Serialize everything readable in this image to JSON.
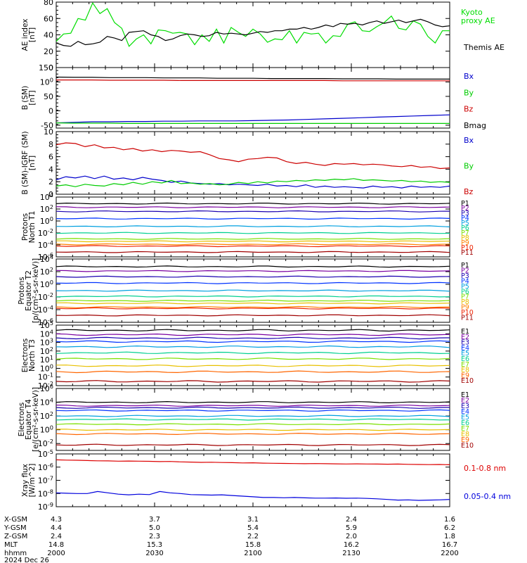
{
  "chart_data": [
    {
      "type": "line",
      "ylabel": "AE index [nT]",
      "ylim": [
        0,
        80
      ],
      "y_ticks": [
        "0",
        "20",
        "40",
        "60",
        "80"
      ],
      "series": [
        {
          "name": "Kyoto proxy AE",
          "color": "#00dd00",
          "values": [
            32,
            41,
            42,
            60,
            58,
            79,
            66,
            72,
            55,
            48,
            26,
            35,
            40,
            29,
            46,
            45,
            42,
            43,
            41,
            28,
            40,
            32,
            47,
            30,
            49,
            43,
            38,
            47,
            41,
            31,
            35,
            34,
            45,
            30,
            43,
            41,
            42,
            30,
            39,
            38,
            53,
            56,
            45,
            44,
            50,
            55,
            63,
            48,
            46,
            57,
            53,
            38,
            30,
            45,
            45
          ]
        },
        {
          "name": "Themis AE",
          "color": "#000000",
          "values": [
            30,
            27,
            26,
            32,
            28,
            29,
            31,
            38,
            36,
            33,
            43,
            44,
            45,
            40,
            38,
            33,
            35,
            39,
            41,
            40,
            38,
            39,
            43,
            41,
            42,
            41,
            40,
            42,
            44,
            43,
            45,
            45,
            47,
            47,
            49,
            47,
            49,
            52,
            50,
            54,
            53,
            54,
            52,
            55,
            57,
            54,
            56,
            58,
            55,
            57,
            59,
            56,
            52,
            50,
            51
          ]
        }
      ]
    },
    {
      "type": "line",
      "ylabel": "B (SM) [nT]",
      "ylim": [
        -60,
        150
      ],
      "y_ticks": [
        "150",
        "100",
        "50",
        "0",
        "-50"
      ],
      "series": [
        {
          "name": "Bx",
          "color": "#0000cc",
          "values": [
            -42,
            -40,
            -38,
            -38,
            -37,
            -37,
            -36,
            -36,
            -35,
            -35,
            -35,
            -34,
            -33,
            -32,
            -30,
            -28,
            -26,
            -24,
            -22,
            -20,
            -18,
            -16,
            -14
          ]
        },
        {
          "name": "By",
          "color": "#00cc00",
          "values": [
            -42,
            -43,
            -43,
            -43,
            -44,
            -44,
            -44,
            -44,
            -44,
            -44,
            -44,
            -44,
            -44,
            -44,
            -44,
            -44,
            -44,
            -44,
            -44,
            -44,
            -44,
            -44,
            -44
          ]
        },
        {
          "name": "Bz",
          "color": "#cc0000",
          "values": [
            107,
            107,
            107,
            106,
            106,
            106,
            106,
            105,
            105,
            105,
            105,
            105,
            105,
            105,
            105,
            105,
            104,
            104,
            104,
            104,
            104,
            104,
            104
          ]
        },
        {
          "name": "Bmag",
          "color": "#000000",
          "values": [
            117,
            116,
            116,
            115,
            115,
            115,
            114,
            114,
            114,
            113,
            113,
            113,
            112,
            112,
            112,
            112,
            111,
            111,
            111,
            110,
            110,
            110,
            110
          ]
        }
      ]
    },
    {
      "type": "line",
      "ylabel": "B (SM)-IGRF (SM) [nT]",
      "ylim": [
        0,
        10
      ],
      "y_ticks": [
        "0",
        "2",
        "4",
        "6",
        "8",
        "10"
      ],
      "series": [
        {
          "name": "Bx",
          "color": "#0000cc",
          "values": [
            2.3,
            2.8,
            2.6,
            2.9,
            2.5,
            2.9,
            2.4,
            2.6,
            2.3,
            2.7,
            2.4,
            2.2,
            1.9,
            2.1,
            1.8,
            1.7,
            1.6,
            1.7,
            1.5,
            1.6,
            1.5,
            1.4,
            1.6,
            1.3,
            1.4,
            1.2,
            1.5,
            1.1,
            1.3,
            1.1,
            1.2,
            1.1,
            1.0,
            1.3,
            1.1,
            1.2,
            1.0,
            1.3,
            1.1,
            1.2,
            1.1,
            1.3
          ]
        },
        {
          "name": "By",
          "color": "#00cc00",
          "values": [
            1.3,
            1.5,
            1.2,
            1.6,
            1.4,
            1.3,
            1.7,
            1.5,
            1.9,
            1.6,
            2.0,
            1.8,
            2.2,
            1.7,
            1.8,
            1.6,
            1.7,
            1.5,
            1.6,
            1.9,
            1.7,
            2.0,
            1.8,
            2.1,
            2.0,
            2.2,
            2.1,
            2.3,
            2.2,
            2.4,
            2.3,
            2.5,
            2.2,
            2.3,
            2.2,
            2.1,
            2.2,
            2.0,
            2.1,
            1.9,
            2.0,
            1.9
          ]
        },
        {
          "name": "Bz",
          "color": "#cc0000",
          "values": [
            7.9,
            8.2,
            8.1,
            7.6,
            7.9,
            7.4,
            7.5,
            7.1,
            7.3,
            6.9,
            7.1,
            6.8,
            7.0,
            6.9,
            6.7,
            6.8,
            6.3,
            5.7,
            5.5,
            5.2,
            5.6,
            5.7,
            5.9,
            5.8,
            5.2,
            4.9,
            5.1,
            4.8,
            4.6,
            4.9,
            4.8,
            4.9,
            4.7,
            4.8,
            4.7,
            4.5,
            4.4,
            4.6,
            4.3,
            4.4,
            4.1,
            4.2
          ]
        }
      ]
    },
    {
      "type": "line",
      "ylabel": "Protons North T1",
      "yscale": "log",
      "ylim": [
        -6,
        4
      ],
      "y_ticks": [
        "10-6",
        "10-4",
        "10-2",
        "100",
        "102",
        "104"
      ],
      "series": [
        {
          "name": "P1",
          "color": "#000000",
          "level": 2.9
        },
        {
          "name": "P2",
          "color": "#7a00a0",
          "level": 2.3
        },
        {
          "name": "P3",
          "color": "#1a00b0",
          "level": 1.6
        },
        {
          "name": "P4",
          "color": "#0033ff",
          "level": 0.4
        },
        {
          "name": "P5",
          "color": "#00a0e0",
          "level": -0.9
        },
        {
          "name": "P6",
          "color": "#00d090",
          "level": -2.0
        },
        {
          "name": "P7",
          "color": "#7be000",
          "level": -3.0
        },
        {
          "name": "P8",
          "color": "#e8c000",
          "level": -3.4
        },
        {
          "name": "P9",
          "color": "#ff8000",
          "level": -3.9
        },
        {
          "name": "P10",
          "color": "#ee2200",
          "level": -4.2
        },
        {
          "name": "P11",
          "color": "#a00000",
          "level": -5.2
        }
      ]
    },
    {
      "type": "line",
      "ylabel": "Protons Equator T2 [p/(cm²-s-sr-keV)]",
      "yscale": "log",
      "ylim": [
        -6,
        4
      ],
      "y_ticks": [
        "10-6",
        "10-4",
        "10-2",
        "100",
        "102",
        "104"
      ],
      "series": [
        {
          "name": "P1",
          "color": "#000000",
          "level": 2.8
        },
        {
          "name": "P2",
          "color": "#7a00a0",
          "level": 2.1
        },
        {
          "name": "P3",
          "color": "#1a00b0",
          "level": 1.2
        },
        {
          "name": "P4",
          "color": "#0033ff",
          "level": 0.2
        },
        {
          "name": "P5",
          "color": "#00a0e0",
          "level": -1.0
        },
        {
          "name": "P6",
          "color": "#00d090",
          "level": -1.9
        },
        {
          "name": "P7",
          "color": "#7be000",
          "level": -2.6
        },
        {
          "name": "P8",
          "color": "#e8c000",
          "level": -3.0
        },
        {
          "name": "P9",
          "color": "#ff8000",
          "level": -3.6
        },
        {
          "name": "P10",
          "color": "#ee2200",
          "level": -3.8
        },
        {
          "name": "P11",
          "color": "#a00000",
          "level": -4.9
        }
      ]
    },
    {
      "type": "line",
      "ylabel": "Electrons North T3",
      "yscale": "log",
      "ylim": [
        -2,
        5
      ],
      "y_ticks": [
        "10-2",
        "10-1",
        "100",
        "101",
        "102",
        "103",
        "104",
        "105"
      ],
      "series": [
        {
          "name": "E1",
          "color": "#000000",
          "level": 4.4
        },
        {
          "name": "E2",
          "color": "#7a00a0",
          "level": 3.9
        },
        {
          "name": "E3",
          "color": "#1a00b0",
          "level": 3.5
        },
        {
          "name": "E4",
          "color": "#0033ff",
          "level": 3.1
        },
        {
          "name": "E5",
          "color": "#00a0e0",
          "level": 2.5
        },
        {
          "name": "E6",
          "color": "#00d090",
          "level": 1.8
        },
        {
          "name": "E7",
          "color": "#7be000",
          "level": 1.1
        },
        {
          "name": "E8",
          "color": "#e8c000",
          "level": 0.3
        },
        {
          "name": "E9",
          "color": "#ff6600",
          "level": -0.4
        },
        {
          "name": "E10",
          "color": "#a00000",
          "level": -1.5
        }
      ]
    },
    {
      "type": "line",
      "ylabel": "Electrons Equator T4 [e/(cm²-s-sr-keV)]",
      "yscale": "log",
      "ylim": [
        -3,
        6
      ],
      "y_ticks": [
        "10-2",
        "100",
        "102",
        "104",
        "106"
      ],
      "series": [
        {
          "name": "E1",
          "color": "#000000",
          "level": 4.0
        },
        {
          "name": "E2",
          "color": "#7a00a0",
          "level": 3.5
        },
        {
          "name": "E3",
          "color": "#1a00b0",
          "level": 3.2
        },
        {
          "name": "E4",
          "color": "#0033ff",
          "level": 2.8
        },
        {
          "name": "E5",
          "color": "#00a0e0",
          "level": 2.0
        },
        {
          "name": "E6",
          "color": "#00d090",
          "level": 1.5
        },
        {
          "name": "E7",
          "color": "#7be000",
          "level": 0.8
        },
        {
          "name": "E8",
          "color": "#e8c000",
          "level": 0.0
        },
        {
          "name": "E9",
          "color": "#ff6600",
          "level": -0.6
        },
        {
          "name": "E10",
          "color": "#a00000",
          "level": -2.2
        }
      ]
    },
    {
      "type": "line",
      "ylabel": "Xray flux [W/m^2]",
      "yscale": "log",
      "ylim": [
        -9,
        -5
      ],
      "y_ticks": [
        "10-9",
        "10-8",
        "10-7",
        "10-6",
        "10-5"
      ],
      "series": [
        {
          "name": "0.1-0.8 nm",
          "color": "#dd0000",
          "values": [
            -5.45,
            -5.47,
            -5.48,
            -5.5,
            -5.52,
            -5.53,
            -5.55,
            -5.54,
            -5.55,
            -5.56,
            -5.58,
            -5.57,
            -5.6,
            -5.62,
            -5.64,
            -5.63,
            -5.65,
            -5.66,
            -5.68,
            -5.67,
            -5.7,
            -5.71,
            -5.72,
            -5.73,
            -5.74,
            -5.73,
            -5.74,
            -5.75,
            -5.76,
            -5.75,
            -5.76,
            -5.77,
            -5.78,
            -5.77,
            -5.79,
            -5.8,
            -5.81,
            -5.8,
            -5.82
          ]
        },
        {
          "name": "0.05-0.4 nm",
          "color": "#0000dd",
          "values": [
            -7.95,
            -7.98,
            -8.0,
            -8.0,
            -7.85,
            -7.95,
            -8.05,
            -8.1,
            -8.05,
            -8.08,
            -7.85,
            -7.95,
            -8.0,
            -8.08,
            -8.1,
            -8.12,
            -8.1,
            -8.15,
            -8.2,
            -8.25,
            -8.3,
            -8.3,
            -8.32,
            -8.3,
            -8.33,
            -8.35,
            -8.35,
            -8.34,
            -8.36,
            -8.35,
            -8.37,
            -8.4,
            -8.45,
            -8.5,
            -8.48,
            -8.52,
            -8.5,
            -8.48,
            -8.45
          ]
        }
      ]
    }
  ],
  "ephemeris": {
    "labels": [
      "X-GSM",
      "Y-GSM",
      "Z-GSM",
      "MLT",
      "hhmm",
      "2024 Dec 26"
    ],
    "columns": [
      [
        "4.3",
        "4.4",
        "2.4",
        "14.8",
        "2000"
      ],
      [
        "3.7",
        "5.0",
        "2.3",
        "15.3",
        "2030"
      ],
      [
        "3.1",
        "5.4",
        "2.2",
        "15.8",
        "2100"
      ],
      [
        "2.4",
        "5.9",
        "2.0",
        "16.2",
        "2130"
      ],
      [
        "1.6",
        "6.2",
        "1.8",
        "16.7",
        "2200"
      ]
    ]
  }
}
